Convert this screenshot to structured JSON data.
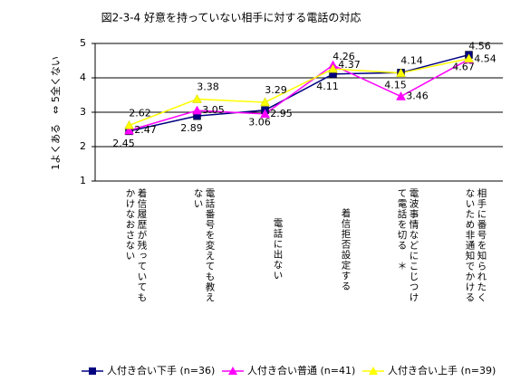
{
  "chart_data": {
    "type": "line",
    "title": "図2-3-4 好意を持っていない相手に対する電話の対応",
    "y_label": "1よくある　⇔ 5全くない",
    "categories": [
      "着信履歴が残っていてもかけなおさない",
      "電話番号を変えても教えない",
      "電話に出ない",
      "着信拒否設定する",
      "電波事情などにこじつけて電話を切る　＊",
      "相手に番号を知られたくないため非通知でかける"
    ],
    "series": [
      {
        "name": "人付き合い下手 (n=36)",
        "color": "#000080",
        "marker": "square",
        "values": [
          2.45,
          2.89,
          3.06,
          4.11,
          4.15,
          4.67
        ]
      },
      {
        "name": "人付き合い普通 (n=41)",
        "color": "#ff00ff",
        "marker": "triangle",
        "values": [
          2.47,
          3.05,
          2.95,
          4.37,
          3.46,
          4.54
        ]
      },
      {
        "name": "人付き合い上手 (n=39)",
        "color": "#ffff00",
        "marker": "triangle",
        "values": [
          2.62,
          3.38,
          3.29,
          4.26,
          4.14,
          4.56
        ]
      }
    ],
    "ylim": [
      1,
      5
    ],
    "yticks": [
      1,
      2,
      3,
      4,
      5
    ],
    "grid": true,
    "legend": "bottom"
  }
}
